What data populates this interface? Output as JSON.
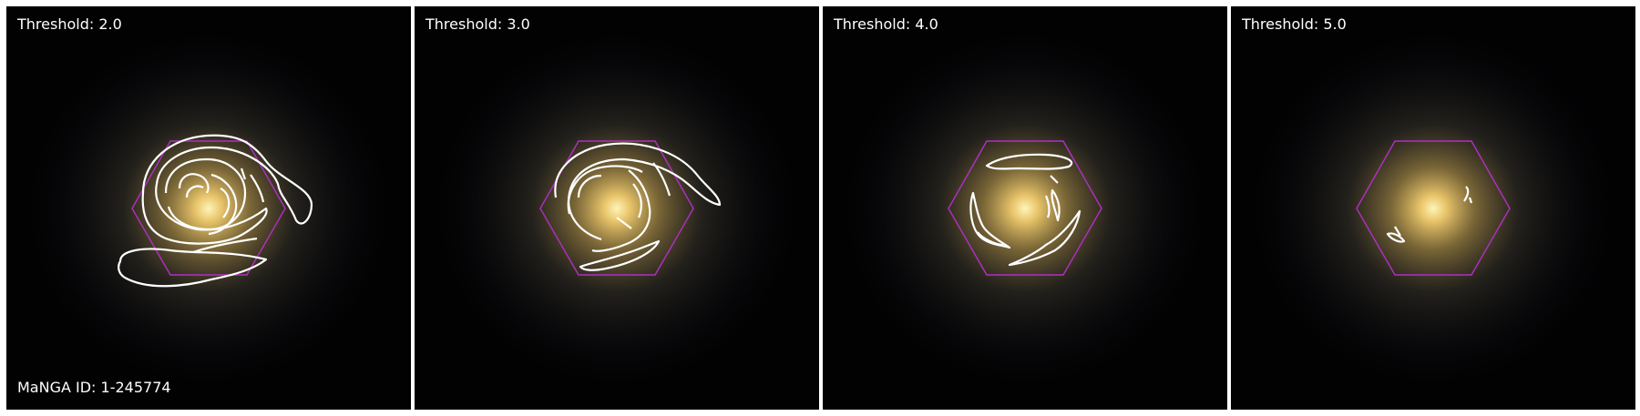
{
  "galaxy_id_label": "MaNGA ID: 1-245774",
  "panels": [
    {
      "label": "Threshold: 2.0"
    },
    {
      "label": "Threshold: 3.0"
    },
    {
      "label": "Threshold: 4.0"
    },
    {
      "label": "Threshold: 5.0"
    }
  ],
  "colors": {
    "hexagon": "#b12fc4",
    "contour": "#ffffff",
    "galaxy_core": "#fff2b0",
    "galaxy_halo": "#8a7440",
    "background": "#020203"
  }
}
